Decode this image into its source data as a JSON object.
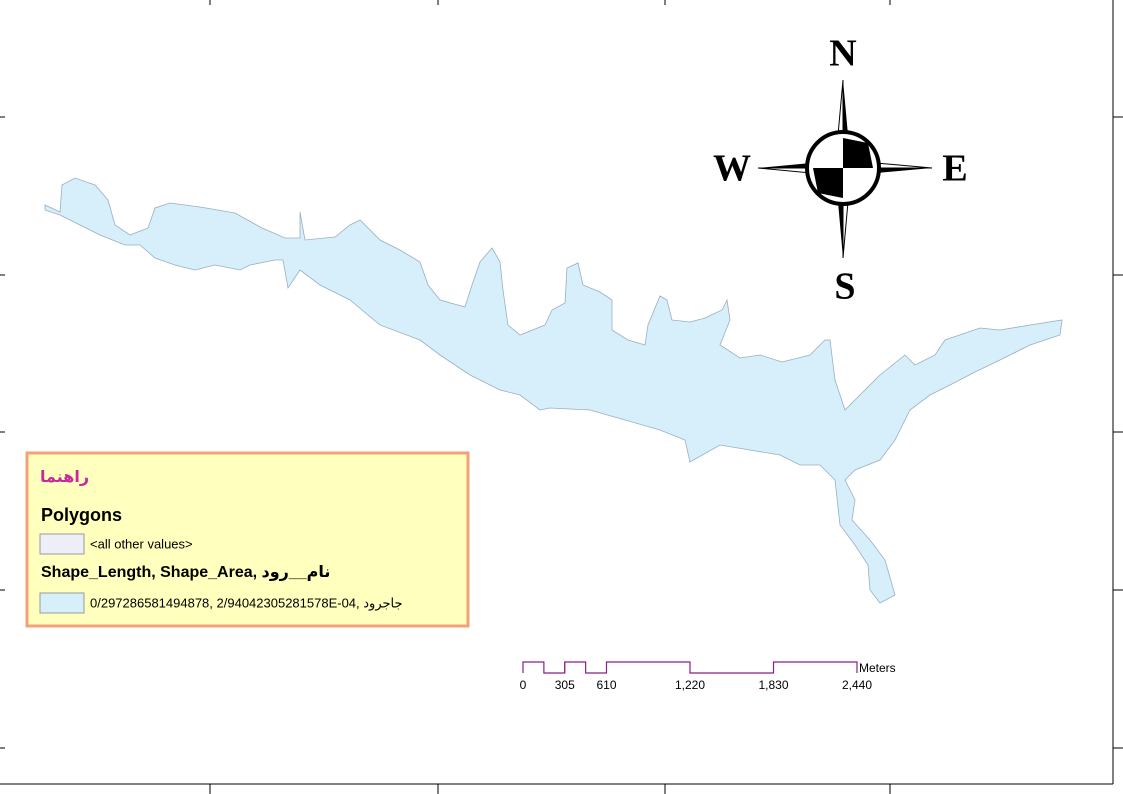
{
  "map": {
    "compass": {
      "north": "N",
      "south": "S",
      "west": "W",
      "east": "E"
    },
    "legend": {
      "title": "راهنما",
      "layer": "Polygons",
      "other_values": "<all other values>",
      "fields": "Shape_Length, Shape_Area, نام__رود",
      "feature": "0/297286581494878, 2/94042305281578E-04, جاجرود"
    },
    "scale_bar": {
      "unit": "Meters",
      "ticks": [
        0,
        305,
        610,
        {
          "value": 1220,
          "label": "1,220"
        },
        {
          "value": 1830,
          "label": "1,830"
        },
        {
          "value": 2440,
          "label": "2,440"
        }
      ]
    }
  }
}
